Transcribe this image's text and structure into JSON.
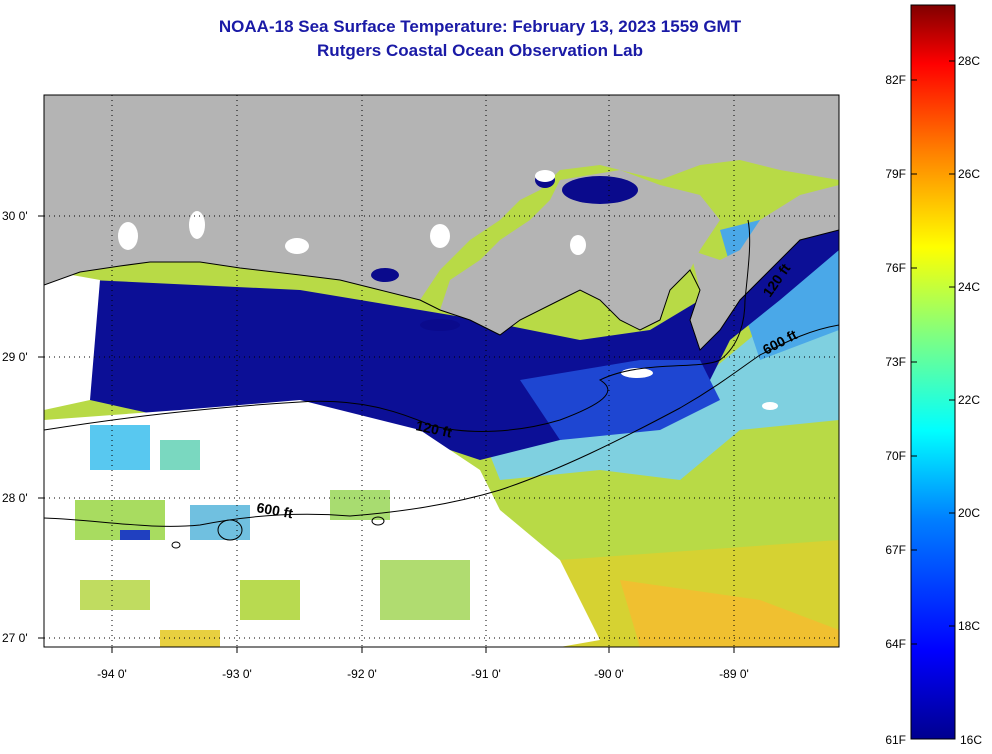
{
  "title": {
    "line1": "NOAA-18 Sea Surface Temperature:  February 13, 2023 1559 GMT",
    "line2": "Rutgers Coastal Ocean Observation Lab"
  },
  "map": {
    "region": "northern Gulf of Mexico — Louisiana coast",
    "lon_range": [
      -94.6,
      -88.3
    ],
    "lat_range": [
      26.95,
      30.85
    ],
    "lon_ticks": [
      {
        "value": -94,
        "label": "-94 0'"
      },
      {
        "value": -93,
        "label": "-93 0'"
      },
      {
        "value": -92,
        "label": "-92 0'"
      },
      {
        "value": -91,
        "label": "-91 0'"
      },
      {
        "value": -90,
        "label": "-90 0'"
      },
      {
        "value": -89,
        "label": "-89 0'"
      }
    ],
    "lat_ticks": [
      {
        "value": 30,
        "label": "30 0'"
      },
      {
        "value": 29,
        "label": "29 0'"
      },
      {
        "value": 28,
        "label": "28 0'"
      },
      {
        "value": 27,
        "label": "27 0'"
      }
    ],
    "contours": [
      {
        "name": "120 ft",
        "labels": [
          "120 ft",
          "120 ft"
        ]
      },
      {
        "name": "600 ft",
        "labels": [
          "600 ft",
          "600 ft"
        ]
      }
    ],
    "colors": {
      "land": "#b4b4b4",
      "cloud": "#ffffff",
      "cold": "#0a0a8c",
      "warm": "#c8dc3c"
    }
  },
  "colorbar": {
    "fahrenheit": [
      "82F",
      "79F",
      "76F",
      "73F",
      "70F",
      "67F",
      "64F",
      "61F"
    ],
    "celsius": [
      "28C",
      "26C",
      "24C",
      "22C",
      "20C",
      "18C",
      "16C"
    ]
  }
}
